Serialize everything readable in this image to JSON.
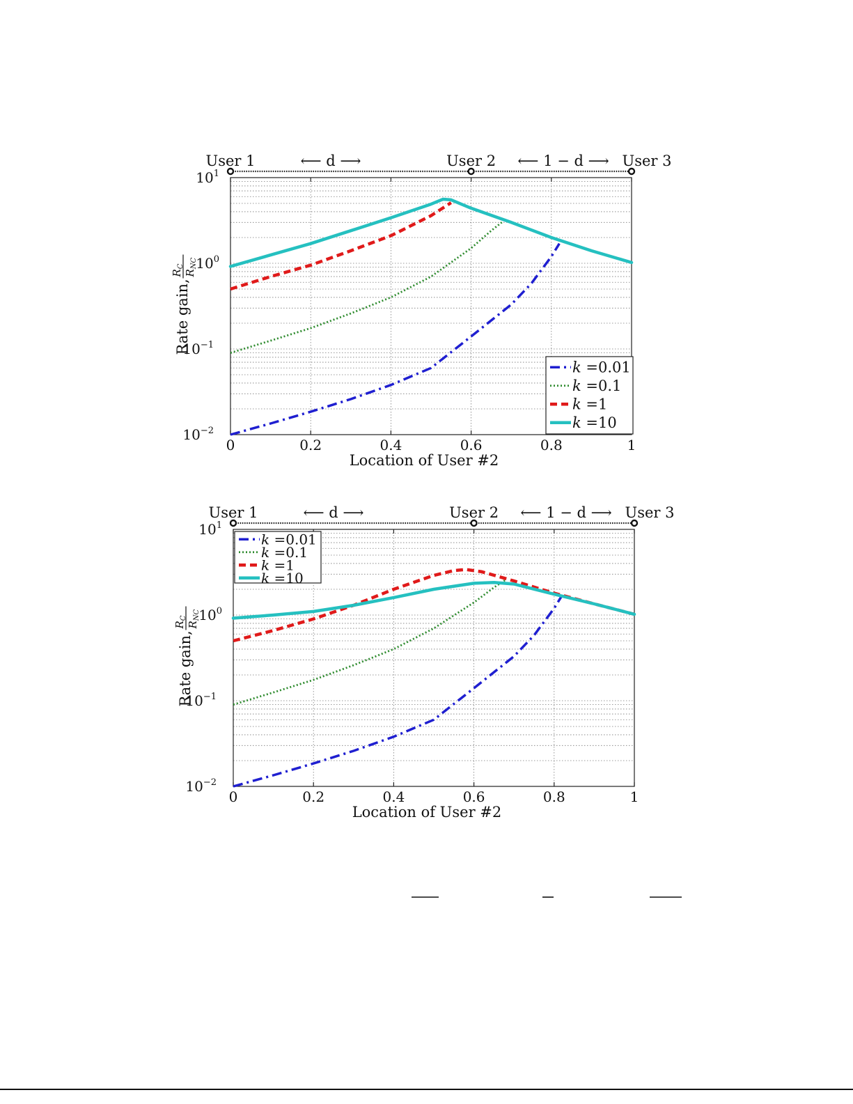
{
  "style": {
    "series_colors": [
      "#1f1fd0",
      "#2e8b2e",
      "#e01a1a",
      "#25c0c0"
    ],
    "series_dash": [
      "dashdot",
      "dotted",
      "dashed",
      "solid"
    ],
    "grid": true,
    "y_scale": "log"
  },
  "chart_data": [
    {
      "type": "line",
      "xlabel": "Location of User #2",
      "ylabel": "Rate gain, R_C / R_NC",
      "ylabel_prefix": "Rate gain,",
      "ylabel_num": "R",
      "ylabel_num_sub": "C",
      "ylabel_den": "R",
      "ylabel_den_sub": "NC",
      "xlim": [
        0,
        1
      ],
      "ylim": [
        0.01,
        10
      ],
      "x_ticks": [
        "0",
        "0.2",
        "0.4",
        "0.6",
        "0.8",
        "1"
      ],
      "y_ticks": [
        {
          "base": "10",
          "exp": "−2"
        },
        {
          "base": "10",
          "exp": "−1"
        },
        {
          "base": "10",
          "exp": "0"
        },
        {
          "base": "10",
          "exp": "1"
        }
      ],
      "top_labels": {
        "user1": "User 1",
        "user2": "User 2",
        "user3": "User 3",
        "d_span": "⟵ d ⟶",
        "one_minus_d_span": "⟵ 1 − d ⟶"
      },
      "legend_position": "bottom-right",
      "series": [
        {
          "name": "k =0.01",
          "x": [
            0,
            0.1,
            0.2,
            0.3,
            0.4,
            0.5,
            0.6,
            0.7,
            0.75,
            0.8,
            0.82
          ],
          "y": [
            0.01,
            0.0135,
            0.0185,
            0.026,
            0.038,
            0.06,
            0.14,
            0.33,
            0.58,
            1.2,
            1.7
          ]
        },
        {
          "name": "k =0.1",
          "x": [
            0,
            0.1,
            0.2,
            0.3,
            0.4,
            0.5,
            0.6,
            0.65,
            0.68
          ],
          "y": [
            0.09,
            0.125,
            0.175,
            0.26,
            0.4,
            0.7,
            1.5,
            2.4,
            3.1
          ]
        },
        {
          "name": "k =1",
          "x": [
            0,
            0.1,
            0.2,
            0.3,
            0.4,
            0.5,
            0.55
          ],
          "y": [
            0.5,
            0.7,
            0.95,
            1.4,
            2.1,
            3.6,
            5.1
          ]
        },
        {
          "name": "k =10",
          "x": [
            0,
            0.1,
            0.2,
            0.3,
            0.4,
            0.5,
            0.53,
            0.55,
            0.6,
            0.7,
            0.8,
            0.9,
            1.0
          ],
          "y": [
            0.92,
            1.25,
            1.7,
            2.4,
            3.4,
            4.9,
            5.6,
            5.5,
            4.4,
            3.0,
            2.0,
            1.4,
            1.02
          ]
        }
      ]
    },
    {
      "type": "line",
      "xlabel": "Location of User #2",
      "ylabel": "Rate gain, R_C / R_NC",
      "ylabel_prefix": "Rate gain,",
      "ylabel_num": "R",
      "ylabel_num_sub": "C",
      "ylabel_den": "R",
      "ylabel_den_sub": "NC",
      "xlim": [
        0,
        1
      ],
      "ylim": [
        0.01,
        10
      ],
      "x_ticks": [
        "0",
        "0.2",
        "0.4",
        "0.6",
        "0.8",
        "1"
      ],
      "y_ticks": [
        {
          "base": "10",
          "exp": "−2"
        },
        {
          "base": "10",
          "exp": "−1"
        },
        {
          "base": "10",
          "exp": "0"
        },
        {
          "base": "10",
          "exp": "1"
        }
      ],
      "top_labels": {
        "user1": "User 1",
        "user2": "User 2",
        "user3": "User 3",
        "d_span": "⟵ d ⟶",
        "one_minus_d_span": "⟵ 1 − d ⟶"
      },
      "legend_position": "top-left",
      "series": [
        {
          "name": "k =0.01",
          "x": [
            0,
            0.1,
            0.2,
            0.3,
            0.4,
            0.5,
            0.6,
            0.7,
            0.75,
            0.8,
            0.82
          ],
          "y": [
            0.01,
            0.0135,
            0.0185,
            0.026,
            0.038,
            0.06,
            0.14,
            0.33,
            0.58,
            1.2,
            1.7
          ]
        },
        {
          "name": "k =0.1",
          "x": [
            0,
            0.1,
            0.2,
            0.3,
            0.4,
            0.5,
            0.6,
            0.65,
            0.68
          ],
          "y": [
            0.09,
            0.125,
            0.175,
            0.26,
            0.4,
            0.7,
            1.4,
            2.1,
            2.6
          ]
        },
        {
          "name": "k =1",
          "x": [
            0,
            0.1,
            0.2,
            0.3,
            0.4,
            0.5,
            0.55,
            0.58,
            0.62,
            0.7,
            0.8,
            0.9,
            1.0
          ],
          "y": [
            0.5,
            0.66,
            0.9,
            1.3,
            2.0,
            2.9,
            3.3,
            3.4,
            3.2,
            2.5,
            1.8,
            1.35,
            1.02
          ]
        },
        {
          "name": "k =10",
          "x": [
            0,
            0.1,
            0.2,
            0.3,
            0.4,
            0.5,
            0.6,
            0.65,
            0.7,
            0.8,
            0.9,
            1.0
          ],
          "y": [
            0.92,
            1.0,
            1.1,
            1.3,
            1.6,
            2.0,
            2.35,
            2.4,
            2.3,
            1.75,
            1.35,
            1.02
          ]
        }
      ]
    }
  ],
  "footer_fragments": {
    "note": "partially visible formula fraction bars at the page bottom"
  }
}
